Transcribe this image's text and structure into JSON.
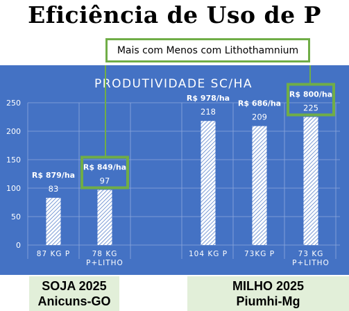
{
  "title": "Eficiência de Uso de P",
  "callout": "Mais com Menos com Lithothamnium",
  "chart_data": {
    "type": "bar",
    "title": "PRODUTIVIDADE SC/HA",
    "categories": [
      [
        "87 KG P"
      ],
      [
        "78 KG",
        "P+LITHO"
      ],
      [
        "104 KG P"
      ],
      [
        "73KG P"
      ],
      [
        "73 KG",
        "P+LITHO"
      ]
    ],
    "values": [
      83,
      97,
      218,
      209,
      225
    ],
    "costs": [
      "R$ 879/ha",
      "R$ 849/ha",
      "R$ 978/ha",
      "R$ 686/ha",
      "R$ 800/ha"
    ],
    "highlighted": [
      false,
      true,
      false,
      false,
      true
    ],
    "ylim": [
      0,
      250
    ],
    "yticks": [
      0,
      50,
      100,
      150,
      200,
      250
    ],
    "grid": true,
    "colors": {
      "background": "#4472c4",
      "bar": "#ffffff",
      "text": "#ffffff",
      "highlight": "#70ad47"
    }
  },
  "groups": [
    {
      "title": "SOJA 2025",
      "subtitle": "Anicuns-GO"
    },
    {
      "title": "MILHO 2025",
      "subtitle": "Piumhi-Mg"
    }
  ]
}
